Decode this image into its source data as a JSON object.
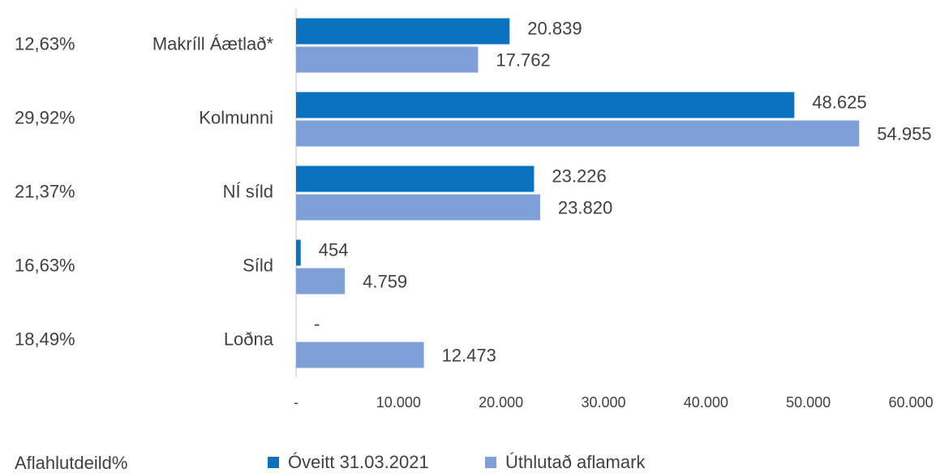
{
  "chart_data": {
    "type": "hbar",
    "categories": [
      "Makríll Áætlað*",
      "Kolmunni",
      "NÍ síld",
      "Síld",
      "Loðna"
    ],
    "series": [
      {
        "name": "Óveitt 31.03.2021",
        "color": "#0b72c2",
        "values": [
          20839,
          48625,
          23226,
          454,
          0
        ],
        "value_labels": [
          "20.839",
          "48.625",
          "23.226",
          "454",
          "-"
        ]
      },
      {
        "name": "Úthlutað aflamark",
        "color": "#7f9fd8",
        "values": [
          17762,
          54955,
          23820,
          4759,
          12473
        ],
        "value_labels": [
          "17.762",
          "54.955",
          "23.820",
          "4.759",
          "12.473"
        ]
      }
    ],
    "xlim": [
      0,
      60000
    ],
    "xticks": [
      {
        "value": 0,
        "label": "-"
      },
      {
        "value": 10000,
        "label": "10.000"
      },
      {
        "value": 20000,
        "label": "20.000"
      },
      {
        "value": 30000,
        "label": "30.000"
      },
      {
        "value": 40000,
        "label": "40.000"
      },
      {
        "value": 50000,
        "label": "50.000"
      },
      {
        "value": 60000,
        "label": "60.000"
      }
    ],
    "share_label": "Aflahlutdeild%",
    "shares": [
      {
        "value": 12.63,
        "label": "12,63%"
      },
      {
        "value": 29.92,
        "label": "29,92%"
      },
      {
        "value": 21.37,
        "label": "21,37%"
      },
      {
        "value": 16.63,
        "label": "16,63%"
      },
      {
        "value": 18.49,
        "label": "18,49%"
      }
    ],
    "legend": "bottom"
  }
}
